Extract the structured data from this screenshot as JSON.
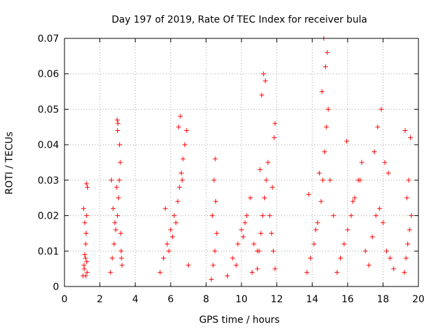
{
  "chart_data": {
    "type": "scatter",
    "title": "Day 197 of 2019, Rate Of TEC Index for receiver bula",
    "xlabel": "GPS time / hours",
    "ylabel": "ROTI / TECUs",
    "xlim": [
      0,
      20
    ],
    "ylim": [
      0,
      0.07
    ],
    "x_ticks": [
      0,
      2,
      4,
      6,
      8,
      10,
      12,
      14,
      16,
      18,
      20
    ],
    "x_tick_labels": [
      "0",
      "2",
      "4",
      "6",
      "8",
      "10",
      "12",
      "14",
      "16",
      "18",
      "20"
    ],
    "y_ticks": [
      0,
      0.01,
      0.02,
      0.03,
      0.04,
      0.05,
      0.06,
      0.07
    ],
    "y_tick_labels": [
      "0",
      "0.01",
      "0.02",
      "0.03",
      "0.04",
      "0.05",
      "0.06",
      "0.07"
    ],
    "grid": true,
    "marker": "+",
    "color": "#ff0000",
    "series": [
      {
        "name": "ROTI",
        "x": [
          1.05,
          1.1,
          1.15,
          1.2,
          1.22,
          1.25,
          1.3,
          1.12,
          1.18,
          1.28,
          1.08,
          1.24,
          1.15,
          1.2,
          1.26,
          2.6,
          2.7,
          2.8,
          2.9,
          3.0,
          3.05,
          3.1,
          3.15,
          3.2,
          3.25,
          2.75,
          2.85,
          2.95,
          3.0,
          3.12,
          3.18,
          2.98,
          3.02,
          3.22,
          2.65,
          5.4,
          5.6,
          5.8,
          6.0,
          6.2,
          6.4,
          6.5,
          6.6,
          6.7,
          6.8,
          6.9,
          7.0,
          5.9,
          6.1,
          6.3,
          6.55,
          6.45,
          6.65,
          5.7,
          8.3,
          8.4,
          8.5,
          8.6,
          8.35,
          8.55,
          8.45,
          8.52,
          9.2,
          9.5,
          9.8,
          10.0,
          10.3,
          10.6,
          10.9,
          10.1,
          10.5,
          9.7,
          10.2,
          10.7,
          10.9,
          11.0,
          11.1,
          11.2,
          11.3,
          11.4,
          11.5,
          11.6,
          11.7,
          11.8,
          11.9,
          11.15,
          11.25,
          11.35,
          11.85,
          11.9,
          11.75,
          11.05,
          13.7,
          13.9,
          14.1,
          14.3,
          14.5,
          14.6,
          14.7,
          14.8,
          14.9,
          15.0,
          15.2,
          14.75,
          14.65,
          14.85,
          14.55,
          14.4,
          14.2,
          13.8,
          15.4,
          15.6,
          15.8,
          16.0,
          16.2,
          16.4,
          16.6,
          16.8,
          17.0,
          17.2,
          17.4,
          17.6,
          17.8,
          18.0,
          18.2,
          18.4,
          18.6,
          15.95,
          16.7,
          17.5,
          17.9,
          17.7,
          18.1,
          18.3,
          16.3,
          19.2,
          19.3,
          19.4,
          19.5,
          19.6,
          19.35,
          19.45,
          19.55,
          19.25
        ],
        "y": [
          0.003,
          0.006,
          0.009,
          0.012,
          0.015,
          0.02,
          0.028,
          0.005,
          0.008,
          0.004,
          0.022,
          0.029,
          0.018,
          0.003,
          0.007,
          0.004,
          0.008,
          0.012,
          0.016,
          0.02,
          0.025,
          0.03,
          0.035,
          0.01,
          0.006,
          0.022,
          0.018,
          0.028,
          0.044,
          0.04,
          0.015,
          0.047,
          0.046,
          0.008,
          0.03,
          0.004,
          0.008,
          0.012,
          0.016,
          0.02,
          0.024,
          0.028,
          0.032,
          0.036,
          0.04,
          0.044,
          0.006,
          0.01,
          0.014,
          0.018,
          0.048,
          0.045,
          0.03,
          0.022,
          0.002,
          0.006,
          0.01,
          0.015,
          0.02,
          0.024,
          0.03,
          0.036,
          0.003,
          0.008,
          0.012,
          0.016,
          0.02,
          0.004,
          0.01,
          0.014,
          0.025,
          0.006,
          0.018,
          0.012,
          0.005,
          0.01,
          0.015,
          0.02,
          0.025,
          0.03,
          0.035,
          0.02,
          0.015,
          0.01,
          0.005,
          0.054,
          0.06,
          0.058,
          0.042,
          0.046,
          0.028,
          0.033,
          0.004,
          0.008,
          0.012,
          0.018,
          0.024,
          0.03,
          0.038,
          0.045,
          0.05,
          0.03,
          0.02,
          0.062,
          0.07,
          0.066,
          0.055,
          0.032,
          0.016,
          0.026,
          0.004,
          0.008,
          0.012,
          0.016,
          0.02,
          0.025,
          0.03,
          0.035,
          0.01,
          0.006,
          0.014,
          0.02,
          0.022,
          0.018,
          0.01,
          0.008,
          0.005,
          0.041,
          0.03,
          0.038,
          0.05,
          0.045,
          0.035,
          0.032,
          0.024,
          0.004,
          0.008,
          0.012,
          0.016,
          0.02,
          0.025,
          0.03,
          0.042,
          0.044
        ]
      }
    ]
  }
}
